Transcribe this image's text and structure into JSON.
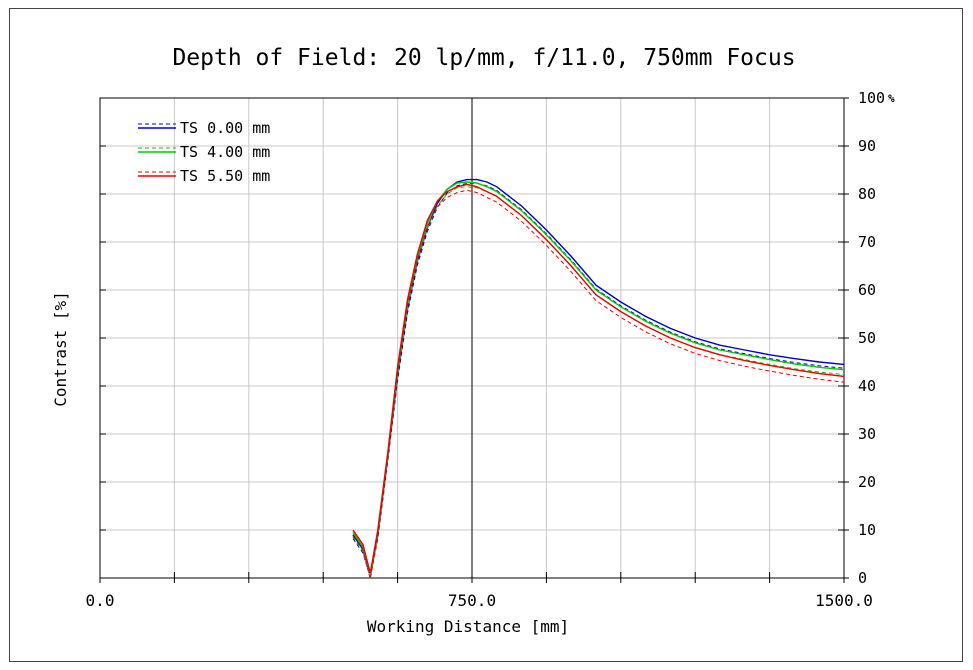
{
  "chart_data": {
    "type": "line",
    "title": "Depth of Field: 20 lp/mm, f/11.0, 750mm Focus",
    "xlabel": "Working Distance [mm]",
    "ylabel": "Contrast [%]",
    "xlim": [
      0,
      1500
    ],
    "ylim": [
      0,
      100
    ],
    "x_tick_labels": [
      "0.0",
      "750.0",
      "1500.0"
    ],
    "y_tick_labels": [
      "0",
      "10",
      "20",
      "30",
      "40",
      "50",
      "60",
      "70",
      "80",
      "90",
      "100"
    ],
    "y_top_unit": "%",
    "focus_line_x": 750,
    "grid": true,
    "legend_position": "top-left",
    "series": [
      {
        "name": "TS 0.00 mm",
        "color": "#0000cc",
        "x": [
          510,
          530,
          545,
          560,
          580,
          600,
          620,
          640,
          660,
          680,
          700,
          720,
          740,
          760,
          780,
          800,
          850,
          900,
          950,
          1000,
          1050,
          1100,
          1150,
          1200,
          1250,
          1300,
          1350,
          1400,
          1450,
          1500
        ],
        "y": [
          9,
          6,
          1,
          9,
          25,
          42,
          56,
          66,
          73,
          78,
          81,
          82.5,
          83,
          83,
          82.5,
          81.5,
          77.5,
          72.5,
          67,
          61,
          57.5,
          54.5,
          52,
          50,
          48.5,
          47.5,
          46.5,
          45.7,
          45,
          44.5
        ]
      },
      {
        "name": "TS 4.00 mm",
        "color": "#00cc00",
        "x": [
          510,
          530,
          545,
          560,
          580,
          600,
          620,
          640,
          660,
          680,
          700,
          720,
          740,
          760,
          780,
          800,
          850,
          900,
          950,
          1000,
          1050,
          1100,
          1150,
          1200,
          1250,
          1300,
          1350,
          1400,
          1450,
          1500
        ],
        "y": [
          9.5,
          6.5,
          1,
          9.5,
          25.5,
          43,
          57,
          67,
          74,
          78.5,
          81,
          82.3,
          82.5,
          82.3,
          81.5,
          80.5,
          76.5,
          71.5,
          66,
          60,
          56.5,
          53.5,
          51,
          49,
          47.5,
          46.5,
          45.5,
          44.6,
          43.9,
          43.4
        ]
      },
      {
        "name": "TS 5.50 mm",
        "color": "#ee0000",
        "x": [
          510,
          530,
          545,
          560,
          580,
          600,
          620,
          640,
          660,
          680,
          700,
          720,
          740,
          760,
          780,
          800,
          850,
          900,
          950,
          1000,
          1050,
          1100,
          1150,
          1200,
          1250,
          1300,
          1350,
          1400,
          1450,
          1500
        ],
        "y": [
          10,
          7,
          1,
          10,
          26,
          44,
          58,
          67.5,
          74.5,
          78.5,
          80.5,
          81.5,
          82,
          81.5,
          80.5,
          79.5,
          75.5,
          70.5,
          65,
          59,
          55.5,
          52.5,
          50,
          48,
          46.5,
          45.3,
          44.3,
          43.4,
          42.6,
          42
        ]
      }
    ]
  }
}
